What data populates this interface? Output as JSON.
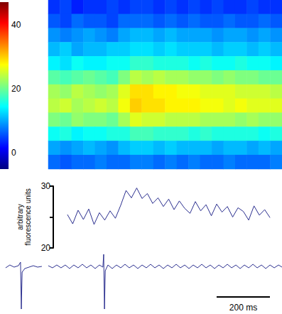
{
  "chart_data": [
    {
      "type": "heatmap",
      "tick_labels": false,
      "colorbar": {
        "range": [
          -5,
          47
        ],
        "ticks": [
          0,
          20,
          40
        ]
      },
      "cells": [
        [
          4,
          5,
          3,
          4,
          4,
          5,
          4,
          5,
          5,
          4,
          5,
          4,
          5,
          4,
          5,
          4,
          4,
          5,
          4,
          4
        ],
        [
          6,
          5,
          7,
          6,
          6,
          5,
          7,
          7,
          7,
          6,
          7,
          6,
          7,
          6,
          6,
          7,
          6,
          6,
          7,
          6
        ],
        [
          9,
          8,
          9,
          10,
          9,
          8,
          10,
          11,
          11,
          10,
          11,
          10,
          10,
          10,
          9,
          10,
          10,
          9,
          10,
          9
        ],
        [
          11,
          12,
          10,
          11,
          11,
          12,
          12,
          13,
          13,
          12,
          13,
          12,
          12,
          12,
          11,
          12,
          12,
          11,
          12,
          11
        ],
        [
          14,
          13,
          15,
          14,
          14,
          15,
          15,
          17,
          17,
          16,
          16,
          16,
          15,
          16,
          15,
          15,
          16,
          15,
          15,
          14
        ],
        [
          19,
          18,
          19,
          20,
          19,
          18,
          21,
          24,
          23,
          24,
          23,
          23,
          22,
          22,
          21,
          22,
          21,
          21,
          20,
          20
        ],
        [
          23,
          22,
          24,
          23,
          22,
          23,
          26,
          29,
          29,
          28,
          28,
          27,
          27,
          26,
          26,
          26,
          25,
          25,
          25,
          24
        ],
        [
          24,
          25,
          23,
          24,
          25,
          24,
          27,
          30,
          29,
          29,
          28,
          28,
          28,
          27,
          27,
          26,
          27,
          26,
          26,
          26
        ],
        [
          21,
          20,
          22,
          21,
          21,
          20,
          23,
          26,
          25,
          25,
          24,
          24,
          24,
          23,
          23,
          23,
          22,
          23,
          22,
          22
        ],
        [
          15,
          16,
          14,
          15,
          15,
          16,
          16,
          18,
          18,
          17,
          17,
          17,
          16,
          17,
          16,
          16,
          16,
          16,
          15,
          16
        ],
        [
          10,
          9,
          10,
          11,
          10,
          9,
          11,
          12,
          12,
          11,
          12,
          11,
          11,
          11,
          10,
          11,
          11,
          10,
          11,
          10
        ],
        [
          7,
          6,
          7,
          7,
          8,
          7,
          7,
          8,
          8,
          7,
          8,
          7,
          8,
          7,
          7,
          8,
          7,
          7,
          7,
          8
        ]
      ]
    },
    {
      "type": "line",
      "ylabel": "arbitrary\nfluorescence units",
      "tick_labels": "y",
      "color": "#2b2f8f",
      "xlim": [
        19,
        877
      ],
      "ylim": [
        20,
        30
      ],
      "yticks": [
        20,
        30
      ],
      "x": [
        72,
        92,
        112,
        132,
        152,
        172,
        192,
        212,
        232,
        252,
        272,
        292,
        312,
        332,
        352,
        372,
        392,
        412,
        432,
        452,
        472,
        492,
        512,
        532,
        552,
        572,
        592,
        612,
        632,
        652,
        672,
        692,
        712,
        732,
        752,
        772,
        792,
        812,
        832
      ],
      "values": [
        25.4,
        23.9,
        26.1,
        24.6,
        26.3,
        23.8,
        25.7,
        24.5,
        26.0,
        24.8,
        26.9,
        29.3,
        28.1,
        29.7,
        28.0,
        28.8,
        27.2,
        28.1,
        26.7,
        27.9,
        26.2,
        27.6,
        26.4,
        25.6,
        27.5,
        26.0,
        27.0,
        25.2,
        27.1,
        25.8,
        26.7,
        25.0,
        26.5,
        25.9,
        24.5,
        26.8,
        25.3,
        26.2,
        24.9
      ]
    },
    {
      "type": "line",
      "tick_labels": false,
      "color": "#2b2f8f",
      "xlim": [
        -181,
        877
      ],
      "ylim": [
        -65,
        20
      ],
      "scale_bar": {
        "value": 200,
        "label": "200 ms"
      },
      "x": [
        -160,
        -144,
        -128,
        -112,
        -104,
        -101,
        -98,
        -88,
        -72,
        -56,
        -40,
        -24,
        -12,
        0,
        16,
        32,
        48,
        64,
        80,
        96,
        112,
        128,
        144,
        160,
        176,
        192,
        205,
        208,
        211,
        214,
        224,
        240,
        256,
        272,
        288,
        304,
        320,
        336,
        352,
        368,
        384,
        400,
        416,
        432,
        448,
        464,
        480,
        496,
        512,
        528,
        544,
        560,
        576,
        592,
        608,
        624,
        640,
        656,
        672,
        688,
        704,
        720,
        736,
        752,
        768,
        784,
        800,
        816,
        832,
        848,
        864,
        877
      ],
      "values": [
        -2,
        2,
        -1,
        1,
        6,
        -60,
        -8,
        -3,
        -1,
        1,
        -1,
        0,
        null,
        1,
        -2,
        2,
        -2,
        2,
        -3,
        2,
        -2,
        3,
        -2,
        2,
        -3,
        2,
        -1,
        17,
        -60,
        -6,
        2,
        -3,
        2,
        -2,
        3,
        -2,
        2,
        -3,
        2,
        -2,
        3,
        -2,
        2,
        -3,
        2,
        -2,
        3,
        -2,
        2,
        -3,
        2,
        -2,
        3,
        -2,
        2,
        -3,
        2,
        -2,
        3,
        -2,
        2,
        -3,
        2,
        -2,
        3,
        -2,
        2,
        -3,
        2,
        -2,
        2,
        -1
      ]
    }
  ]
}
